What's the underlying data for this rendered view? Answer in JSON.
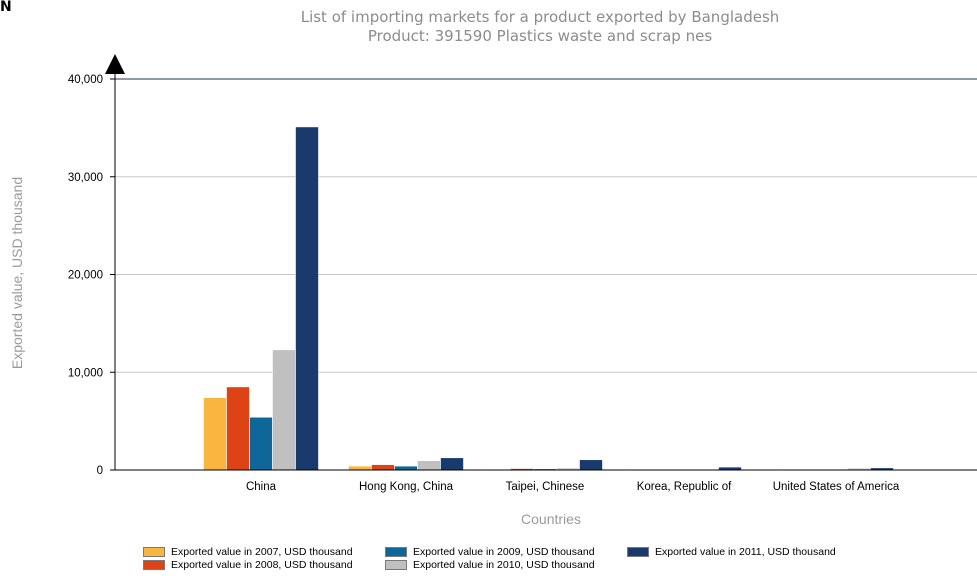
{
  "corner_mark": "N",
  "chart_data": {
    "type": "bar",
    "title": "List of importing markets for a product exported by Bangladesh",
    "subtitle": "Product: 391590 Plastics waste and scrap nes",
    "xlabel": "Countries",
    "ylabel": "Exported value, USD thousand",
    "ylim": [
      0,
      40000
    ],
    "yticks": [
      0,
      10000,
      20000,
      30000,
      40000
    ],
    "ytick_labels": [
      "0",
      "10,000",
      "20,000",
      "30,000",
      "40,000"
    ],
    "grid": true,
    "legend_position": "bottom",
    "categories": [
      "China",
      "Hong Kong, China",
      "Taipei, Chinese",
      "Korea, Republic of",
      "United States of America"
    ],
    "series": [
      {
        "name": "Exported value in 2007, USD thousand",
        "color": "#F9B53F",
        "values": [
          7400,
          400,
          60,
          30,
          20
        ]
      },
      {
        "name": "Exported value in 2008, USD thousand",
        "color": "#DE4316",
        "values": [
          8500,
          550,
          150,
          40,
          20
        ]
      },
      {
        "name": "Exported value in 2009, USD thousand",
        "color": "#0E6699",
        "values": [
          5400,
          400,
          120,
          50,
          30
        ]
      },
      {
        "name": "Exported value in 2010, USD thousand",
        "color": "#C0C0C0",
        "values": [
          12300,
          950,
          200,
          60,
          180
        ]
      },
      {
        "name": "Exported value in 2011, USD thousand",
        "color": "#1A3A6E",
        "values": [
          35100,
          1250,
          1050,
          300,
          220
        ]
      }
    ]
  }
}
